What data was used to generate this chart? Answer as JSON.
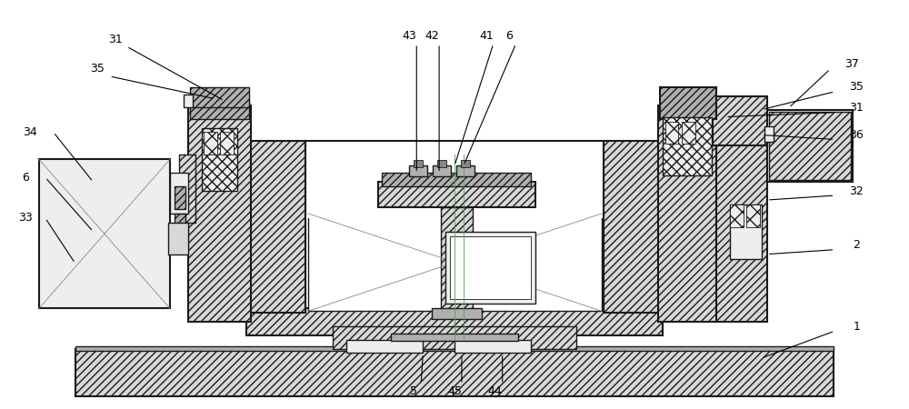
{
  "bg_color": "#ffffff",
  "line_color": "#1a1a1a",
  "figsize": [
    10.0,
    4.5
  ],
  "dpi": 100,
  "hatch_dense": "////",
  "hatch_light": "///",
  "gray_dark": "#888888",
  "gray_mid": "#b0b0b0",
  "gray_light": "#d8d8d8",
  "gray_vlight": "#eeeeee"
}
